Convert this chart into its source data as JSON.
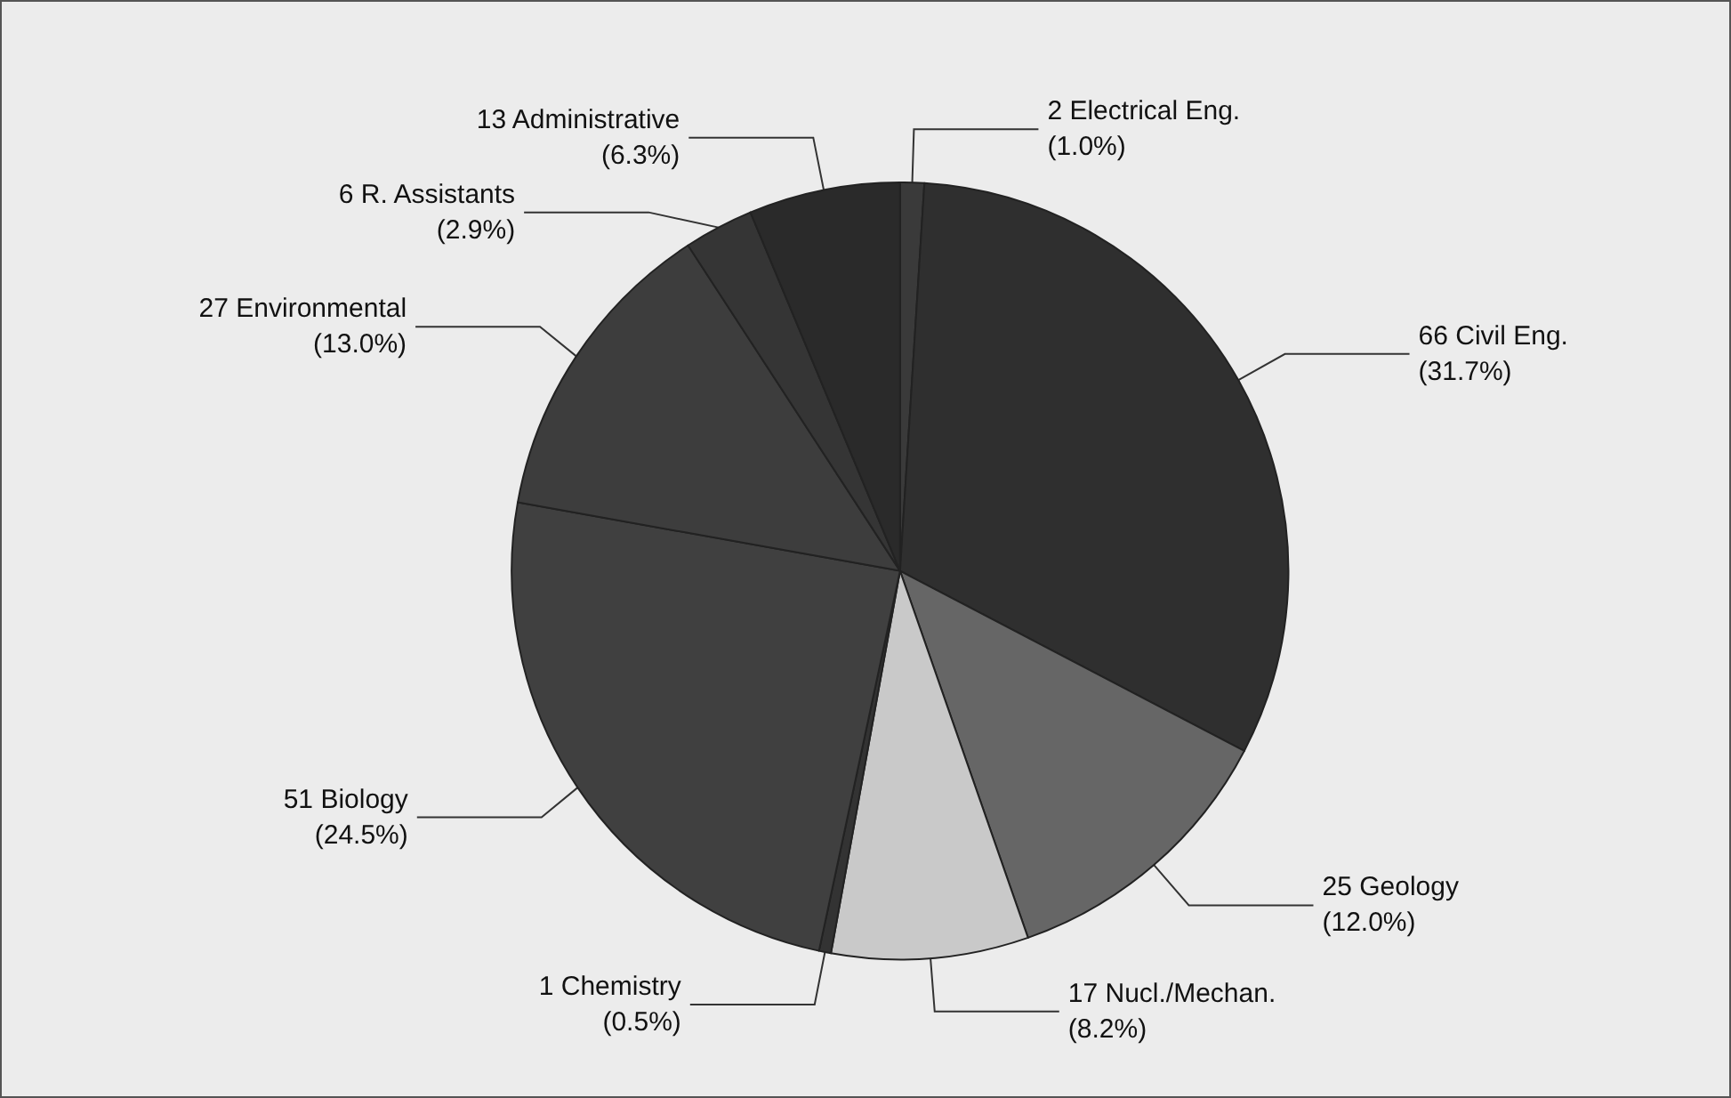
{
  "chart_data": {
    "type": "pie",
    "categories": [
      "2 Electrical Eng.",
      "66 Civil Eng.",
      "25 Geology",
      "17 Nucl./Mechan.",
      "1 Chemistry",
      "51 Biology",
      "27 Environmental",
      "6 R. Assistants",
      "13 Administrative"
    ],
    "values": [
      1.0,
      31.7,
      12.0,
      8.2,
      0.5,
      24.5,
      13.0,
      2.9,
      6.3
    ],
    "value_labels": [
      "(1.0%)",
      "(31.7%)",
      "(12.0%)",
      "(8.2%)",
      "(0.5%)",
      "(24.5%)",
      "(13.0%)",
      "(2.9%)",
      "(6.3%)"
    ],
    "colors": [
      "#3a3a3a",
      "#2f2f2f",
      "#666666",
      "#c9c9c9",
      "#333333",
      "#404040",
      "#3d3d3d",
      "#353535",
      "#2a2a2a"
    ],
    "legend": false
  }
}
